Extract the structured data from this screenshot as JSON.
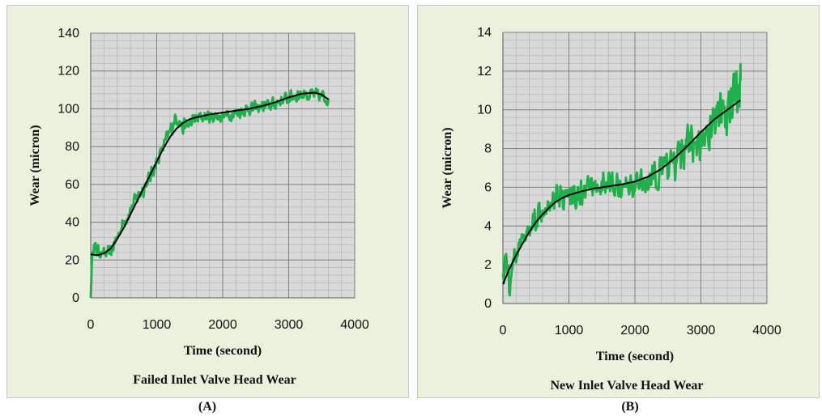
{
  "chart_data": [
    {
      "type": "line",
      "title": "Failed Inlet Valve Head Wear",
      "xlabel": "Time (second)",
      "ylabel": "Wear (micron)",
      "xlim": [
        0,
        4000
      ],
      "ylim": [
        0,
        140
      ],
      "xticks": [
        0,
        1000,
        2000,
        3000,
        4000
      ],
      "yticks": [
        0,
        20,
        40,
        60,
        80,
        100,
        120,
        140
      ],
      "grid": true,
      "series": [
        {
          "style": "noisy measured",
          "color": "#1fb04b",
          "x": [
            0,
            30,
            60,
            100,
            150,
            200,
            300,
            400,
            500,
            600,
            700,
            800,
            900,
            1000,
            1100,
            1200,
            1300,
            1400,
            1500,
            1600,
            1800,
            2000,
            2200,
            2400,
            2600,
            2800,
            3000,
            3200,
            3400,
            3550,
            3600
          ],
          "y": [
            0,
            30,
            26,
            25,
            24,
            23,
            24,
            32,
            40,
            46,
            53,
            58,
            64,
            72,
            80,
            88,
            96,
            90,
            92,
            95,
            96,
            96,
            98,
            100,
            101,
            103,
            106,
            108,
            107,
            106,
            104
          ],
          "noise": [
            0,
            6,
            5,
            4,
            4,
            4,
            4,
            4,
            4,
            5,
            5,
            5,
            5,
            4,
            4,
            5,
            5,
            5,
            5,
            4,
            4,
            4,
            4,
            4,
            4,
            4,
            4,
            5,
            5,
            5,
            3
          ]
        },
        {
          "style": "trend",
          "color": "#000000",
          "x": [
            0,
            100,
            200,
            300,
            400,
            500,
            600,
            700,
            800,
            900,
            1000,
            1100,
            1200,
            1300,
            1400,
            1500,
            1600,
            1800,
            2000,
            2200,
            2400,
            2600,
            2800,
            3000,
            3200,
            3400,
            3500,
            3600
          ],
          "y": [
            23,
            22.5,
            23.5,
            26,
            31,
            37,
            44,
            51,
            58,
            65,
            72,
            79,
            85,
            89.5,
            92.5,
            94.5,
            95.5,
            97,
            98,
            99,
            100,
            101.5,
            103.5,
            106,
            108,
            108.5,
            107.5,
            105
          ]
        }
      ]
    },
    {
      "type": "line",
      "title": "New Inlet Valve Head Wear",
      "xlabel": "Time (second)",
      "ylabel": "Wear (micron)",
      "xlim": [
        0,
        4000
      ],
      "ylim": [
        0,
        14
      ],
      "xticks": [
        0,
        1000,
        2000,
        3000,
        4000
      ],
      "yticks": [
        0,
        2,
        4,
        6,
        8,
        10,
        12,
        14
      ],
      "grid": true,
      "series": [
        {
          "style": "noisy measured",
          "color": "#1fb04b",
          "x": [
            0,
            50,
            100,
            150,
            200,
            300,
            400,
            500,
            600,
            700,
            800,
            900,
            1000,
            1200,
            1400,
            1600,
            1800,
            2000,
            2200,
            2400,
            2600,
            2800,
            3000,
            3200,
            3400,
            3500,
            3600
          ],
          "y": [
            1.5,
            2.5,
            1.0,
            2.2,
            2.5,
            3.2,
            3.8,
            4.5,
            5.0,
            5.3,
            5.5,
            5.6,
            5.5,
            5.7,
            6.0,
            6.2,
            6.0,
            6.2,
            6.3,
            6.7,
            7.3,
            8.0,
            8.5,
            9.2,
            10.0,
            10.5,
            11.5
          ],
          "noise": [
            0.8,
            1.2,
            1.0,
            0.8,
            0.7,
            0.7,
            0.7,
            0.8,
            0.8,
            0.8,
            0.8,
            0.8,
            0.8,
            0.8,
            0.8,
            0.8,
            0.7,
            0.7,
            0.8,
            1.0,
            1.2,
            1.4,
            1.5,
            1.6,
            1.6,
            1.6,
            1.2
          ]
        },
        {
          "style": "trend",
          "color": "#000000",
          "x": [
            0,
            100,
            200,
            300,
            400,
            500,
            600,
            700,
            800,
            900,
            1000,
            1200,
            1400,
            1600,
            1800,
            2000,
            2200,
            2400,
            2600,
            2800,
            3000,
            3200,
            3400,
            3600
          ],
          "y": [
            1.0,
            1.8,
            2.5,
            3.1,
            3.7,
            4.2,
            4.6,
            4.95,
            5.25,
            5.45,
            5.6,
            5.8,
            5.95,
            6.05,
            6.15,
            6.3,
            6.55,
            6.95,
            7.5,
            8.15,
            8.85,
            9.5,
            10.0,
            10.5
          ]
        }
      ]
    }
  ],
  "captions": [
    "(A)",
    "(B)"
  ]
}
